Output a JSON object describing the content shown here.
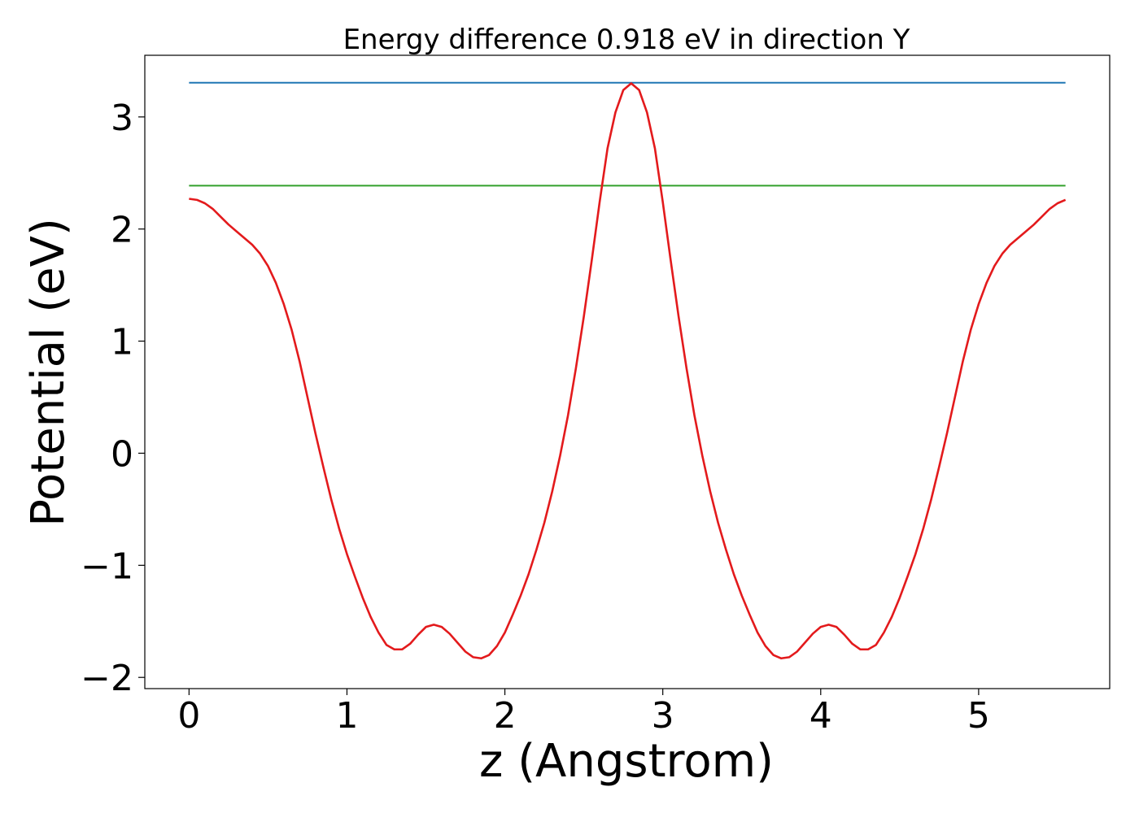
{
  "chart_data": {
    "type": "line",
    "title": "Energy difference 0.918 eV in direction Y",
    "xlabel": "z (Angstrom)",
    "ylabel": "Potential (eV)",
    "xlim": [
      -0.28,
      5.83
    ],
    "ylim": [
      -2.1,
      3.55
    ],
    "xticks": [
      0,
      1,
      2,
      3,
      4,
      5
    ],
    "yticks": [
      -2,
      -1,
      0,
      1,
      2,
      3
    ],
    "xtick_labels": [
      "0",
      "1",
      "2",
      "3",
      "4",
      "5"
    ],
    "ytick_labels": [
      "−2",
      "−1",
      "0",
      "1",
      "2",
      "3"
    ],
    "grid": false,
    "legend": "none",
    "colors": {
      "potential": "#e31a1c",
      "max_line": "#1f77b4",
      "mean_line": "#33a02c"
    },
    "series": [
      {
        "color_key": "potential",
        "x": [
          0.0,
          0.05,
          0.1,
          0.15,
          0.2,
          0.25,
          0.3,
          0.35,
          0.4,
          0.45,
          0.5,
          0.55,
          0.6,
          0.65,
          0.7,
          0.75,
          0.8,
          0.85,
          0.9,
          0.95,
          1.0,
          1.05,
          1.1,
          1.15,
          1.2,
          1.25,
          1.3,
          1.35,
          1.4,
          1.45,
          1.5,
          1.55,
          1.6,
          1.65,
          1.7,
          1.75,
          1.8,
          1.85,
          1.9,
          1.95,
          2.0,
          2.05,
          2.1,
          2.15,
          2.2,
          2.25,
          2.3,
          2.35,
          2.4,
          2.45,
          2.5,
          2.55,
          2.6,
          2.65,
          2.7,
          2.75,
          2.8,
          2.85,
          2.9,
          2.95,
          3.0,
          3.05,
          3.1,
          3.15,
          3.2,
          3.25,
          3.3,
          3.35,
          3.4,
          3.45,
          3.5,
          3.55,
          3.6,
          3.65,
          3.7,
          3.75,
          3.8,
          3.85,
          3.9,
          3.95,
          4.0,
          4.05,
          4.1,
          4.15,
          4.2,
          4.25,
          4.3,
          4.35,
          4.4,
          4.45,
          4.5,
          4.55,
          4.6,
          4.65,
          4.7,
          4.75,
          4.8,
          4.85,
          4.9,
          4.95,
          5.0,
          5.05,
          5.1,
          5.15,
          5.2,
          5.25,
          5.3,
          5.35,
          5.4,
          5.45,
          5.5,
          5.55
        ],
        "y": [
          2.27,
          2.26,
          2.23,
          2.18,
          2.11,
          2.04,
          1.98,
          1.92,
          1.86,
          1.78,
          1.67,
          1.52,
          1.33,
          1.1,
          0.82,
          0.5,
          0.18,
          -0.12,
          -0.41,
          -0.67,
          -0.9,
          -1.1,
          -1.29,
          -1.46,
          -1.6,
          -1.71,
          -1.75,
          -1.75,
          -1.7,
          -1.62,
          -1.55,
          -1.53,
          -1.55,
          -1.61,
          -1.69,
          -1.77,
          -1.82,
          -1.83,
          -1.8,
          -1.72,
          -1.6,
          -1.44,
          -1.27,
          -1.08,
          -0.86,
          -0.62,
          -0.34,
          -0.02,
          0.34,
          0.76,
          1.22,
          1.72,
          2.24,
          2.72,
          3.04,
          3.24,
          3.3,
          3.24,
          3.04,
          2.72,
          2.24,
          1.72,
          1.22,
          0.76,
          0.34,
          -0.02,
          -0.34,
          -0.62,
          -0.86,
          -1.08,
          -1.27,
          -1.44,
          -1.6,
          -1.72,
          -1.8,
          -1.83,
          -1.82,
          -1.77,
          -1.69,
          -1.61,
          -1.55,
          -1.53,
          -1.55,
          -1.62,
          -1.7,
          -1.75,
          -1.75,
          -1.71,
          -1.6,
          -1.46,
          -1.29,
          -1.1,
          -0.9,
          -0.67,
          -0.41,
          -0.12,
          0.18,
          0.5,
          0.82,
          1.1,
          1.33,
          1.52,
          1.67,
          1.78,
          1.86,
          1.92,
          1.98,
          2.04,
          2.11,
          2.18,
          2.23,
          2.26
        ]
      },
      {
        "color_key": "max_line",
        "x": [
          0.0,
          5.55
        ],
        "y": [
          3.305,
          3.305
        ]
      },
      {
        "color_key": "mean_line",
        "x": [
          0.0,
          5.55
        ],
        "y": [
          2.387,
          2.387
        ]
      }
    ]
  }
}
